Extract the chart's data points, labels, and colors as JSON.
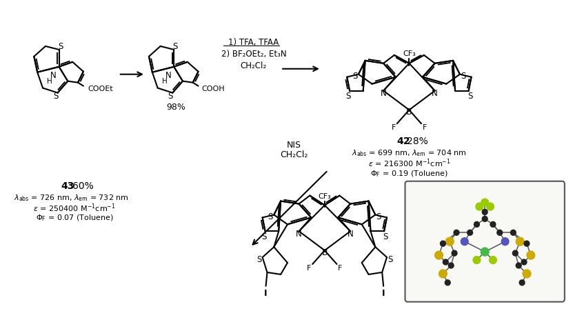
{
  "background_color": "#ffffff",
  "figsize": [
    8.31,
    4.52
  ],
  "dpi": 100,
  "compound42": {
    "label_bold": "42",
    "label_normal": " 28%",
    "lambda_abs": "699",
    "lambda_em": "704",
    "epsilon": "216300",
    "phi": "0.19",
    "solvent": "Toluene"
  },
  "compound43": {
    "label_bold": "43",
    "label_normal": " 60%",
    "lambda_abs": "726",
    "lambda_em": "732",
    "epsilon": "250400",
    "phi": "0.07",
    "solvent": "Toluene"
  },
  "yield_intermediate": "98%",
  "text_color": "#000000",
  "crystal_box_color": "#555555",
  "crystal_box_bg": "#ffffff",
  "C_color": "#222222",
  "S_color": "#ccaa00",
  "N_color": "#5555bb",
  "B_color": "#44bb44",
  "F_color": "#99cc00"
}
